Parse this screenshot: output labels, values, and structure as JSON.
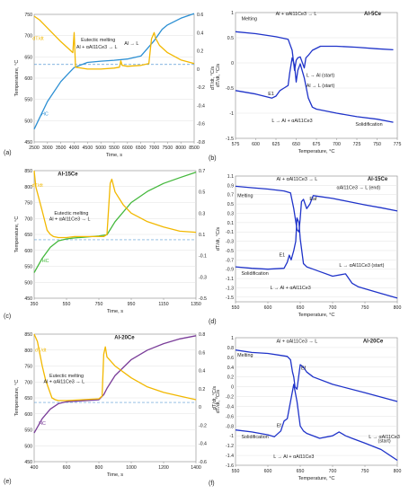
{
  "chart_data": [
    {
      "panel": "(a)",
      "type": "line",
      "tag": "Al-5Ce",
      "xlabel": "Time, s",
      "ylabel": "Temperature, °C",
      "y2label": "dT/dt, °C/s",
      "xlim": [
        2500,
        8500
      ],
      "ylim": [
        450,
        750
      ],
      "y2lim": [
        -0.8,
        0.6
      ],
      "xticks": [
        2500,
        3000,
        3500,
        4000,
        4500,
        5000,
        5500,
        6000,
        6500,
        7000,
        7500,
        8000,
        8500
      ],
      "yticks": [
        450,
        500,
        550,
        600,
        650,
        700,
        750
      ],
      "y2ticks": [
        -0.8,
        -0.6,
        -0.4,
        -0.2,
        0,
        0.2,
        0.4,
        0.6
      ],
      "series": [
        {
          "name": "HC",
          "axis": "left",
          "color": "#2b8fd3",
          "x": [
            2500,
            3000,
            3500,
            3800,
            4000,
            4500,
            5000,
            5500,
            6000,
            6500,
            7000,
            7300,
            7500,
            8000,
            8500
          ],
          "y": [
            480,
            545,
            592,
            612,
            625,
            637,
            640,
            642,
            645,
            652,
            688,
            715,
            725,
            741,
            752
          ]
        },
        {
          "name": "dT/dt",
          "axis": "right",
          "color": "#f2b800",
          "x": [
            2500,
            2700,
            3000,
            3500,
            3800,
            3950,
            4000,
            4050,
            4500,
            5000,
            5500,
            5700,
            5750,
            5800,
            6000,
            6500,
            6800,
            6900,
            7000,
            7050,
            7200,
            7500,
            8000,
            8500
          ],
          "y": [
            0.58,
            0.54,
            0.45,
            0.3,
            0.22,
            0.18,
            0.4,
            0.02,
            0.0,
            0.0,
            0.01,
            0.02,
            0.09,
            0.04,
            0.03,
            0.04,
            0.06,
            0.33,
            0.4,
            0.34,
            0.26,
            0.18,
            0.1,
            0.06
          ]
        }
      ],
      "hlines": [
        {
          "axis": "right",
          "y": 0.05,
          "color": "#5a9bd5",
          "style": "dashed"
        }
      ],
      "annotations": [
        {
          "text": "dT/dt",
          "x": 2650,
          "y": 690,
          "color": "#f2b800"
        },
        {
          "text": "HC",
          "x": 2900,
          "y": 512,
          "color": "#2b8fd3"
        },
        {
          "text": "Eutectic melting",
          "x": 4900,
          "y": 687
        },
        {
          "text": "Al + αAl11Ce3 → L",
          "x": 4850,
          "y": 670
        },
        {
          "text": "Al → L",
          "x": 6150,
          "y": 678
        }
      ]
    },
    {
      "panel": "(b)",
      "type": "line",
      "tag": "Al-5Ce",
      "xlabel": "Temperature, °C",
      "ylabel": "dT/dt, °C/s",
      "xlim": [
        575,
        775
      ],
      "ylim": [
        -1.5,
        1
      ],
      "xticks": [
        575,
        600,
        625,
        650,
        675,
        700,
        725,
        750,
        775
      ],
      "yticks": [
        -1.5,
        -1,
        -0.5,
        0,
        0.5,
        1
      ],
      "series": [
        {
          "name": "Melting",
          "color": "#1f33c9",
          "x": [
            575,
            600,
            625,
            640,
            645,
            648,
            650,
            652,
            655,
            660,
            662,
            665,
            670,
            680,
            700,
            725,
            750,
            770
          ],
          "y": [
            0.62,
            0.58,
            0.52,
            0.47,
            0.25,
            -0.15,
            0.05,
            0.1,
            0.12,
            -0.1,
            0.1,
            0.15,
            0.25,
            0.33,
            0.33,
            0.31,
            0.28,
            0.26
          ]
        },
        {
          "name": "Solidification",
          "color": "#1f33c9",
          "x": [
            575,
            600,
            615,
            620,
            625,
            630,
            635,
            640,
            642,
            645,
            648,
            650,
            652,
            655,
            660,
            665,
            670,
            675,
            700,
            725,
            750,
            770
          ],
          "y": [
            -0.55,
            -0.62,
            -0.68,
            -0.7,
            -0.66,
            -0.55,
            -0.5,
            -0.45,
            -0.2,
            0.1,
            -0.05,
            -0.38,
            -0.15,
            -0.02,
            -0.3,
            -0.7,
            -0.88,
            -0.92,
            -1.0,
            -1.07,
            -1.12,
            -1.18
          ]
        }
      ],
      "annotations": [
        {
          "text": "Melting",
          "x": 592,
          "y": 0.85
        },
        {
          "text": "Al + αAl11Ce3 → L",
          "x": 650,
          "y": 0.95
        },
        {
          "text": "Al-5Ce",
          "x": 755,
          "y": 0.95
        },
        {
          "text": "E1",
          "x": 619,
          "y": -0.64
        },
        {
          "text": "L → Al (start)",
          "x": 680,
          "y": -0.28
        },
        {
          "text": "Al → L (start)",
          "x": 680,
          "y": -0.48
        },
        {
          "text": "L → Al + αAl11Ce3",
          "x": 645,
          "y": -1.18
        },
        {
          "text": "Solidification",
          "x": 740,
          "y": -1.25
        }
      ]
    },
    {
      "panel": "(c)",
      "type": "line",
      "tag": "Al-15Ce",
      "xlabel": "Time, s",
      "ylabel": "Temperature, °C",
      "xlim": [
        350,
        1350
      ],
      "ylim": [
        450,
        850
      ],
      "y2lim": [
        -0.5,
        0.7
      ],
      "xticks": [
        350,
        550,
        750,
        950,
        1150,
        1350
      ],
      "yticks": [
        450,
        500,
        550,
        600,
        650,
        700,
        750,
        800,
        850
      ],
      "y2ticks": [
        -0.5,
        -0.3,
        -0.1,
        0.1,
        0.3,
        0.5,
        0.7
      ],
      "series": [
        {
          "name": "HC",
          "axis": "left",
          "color": "#44b83c",
          "x": [
            350,
            400,
            450,
            500,
            550,
            600,
            650,
            700,
            750,
            800,
            850,
            950,
            1050,
            1150,
            1250,
            1350
          ],
          "y": [
            530,
            575,
            610,
            630,
            636,
            639,
            641,
            643,
            645,
            649,
            690,
            750,
            785,
            810,
            828,
            845
          ]
        },
        {
          "name": "dT/dt",
          "axis": "right",
          "color": "#f2b800",
          "x": [
            350,
            360,
            400,
            430,
            450,
            470,
            500,
            550,
            600,
            700,
            780,
            800,
            820,
            830,
            850,
            900,
            950,
            1050,
            1150,
            1250,
            1350
          ],
          "y": [
            0.7,
            0.55,
            0.32,
            0.14,
            0.1,
            0.08,
            0.07,
            0.07,
            0.08,
            0.08,
            0.08,
            0.1,
            0.58,
            0.62,
            0.5,
            0.38,
            0.3,
            0.22,
            0.17,
            0.13,
            0.12
          ]
        }
      ],
      "hlines": [
        {
          "axis": "right",
          "y": 0.05,
          "color": "#5a9bd5",
          "style": "dashed"
        }
      ],
      "annotations": [
        {
          "text": "Al-15Ce",
          "x": 620,
          "y": 835
        },
        {
          "text": "dT/dt",
          "x": 370,
          "y": 800,
          "color": "#f2b800"
        },
        {
          "text": "HC",
          "x": 420,
          "y": 563,
          "color": "#44b83c"
        },
        {
          "text": "Eutectic melting",
          "x": 580,
          "y": 712
        },
        {
          "text": "Al + αAl11Ce3 → L",
          "x": 570,
          "y": 694
        }
      ]
    },
    {
      "panel": "(d)",
      "type": "line",
      "tag": "Al-15Ce",
      "xlabel": "Temperature, °C",
      "ylabel": "dT/dt, °C/s",
      "xlim": [
        550,
        800
      ],
      "ylim": [
        -1.6,
        1.1
      ],
      "xticks": [
        550,
        600,
        650,
        700,
        750,
        800
      ],
      "yticks": [
        -1.5,
        -1.3,
        -1.1,
        -0.9,
        -0.7,
        -0.5,
        -0.3,
        -0.1,
        0.1,
        0.3,
        0.5,
        0.7,
        0.9,
        1.1
      ],
      "series": [
        {
          "name": "Melting",
          "color": "#1f33c9",
          "x": [
            550,
            575,
            600,
            625,
            635,
            640,
            645,
            648,
            650,
            652,
            655,
            660,
            665,
            670,
            680,
            700,
            725,
            750,
            775,
            800
          ],
          "y": [
            0.88,
            0.85,
            0.82,
            0.78,
            0.74,
            0.4,
            -0.05,
            -0.1,
            0.2,
            0.55,
            0.6,
            0.4,
            0.5,
            0.68,
            0.66,
            0.62,
            0.55,
            0.48,
            0.42,
            0.35
          ]
        },
        {
          "name": "Solidification",
          "color": "#1f33c9",
          "x": [
            550,
            575,
            600,
            625,
            630,
            633,
            636,
            640,
            643,
            645,
            648,
            650,
            655,
            660,
            670,
            680,
            700,
            720,
            730,
            740,
            750,
            775,
            800
          ],
          "y": [
            -0.85,
            -0.88,
            -0.9,
            -0.88,
            -0.75,
            -0.6,
            -0.7,
            -0.5,
            -0.3,
            0.2,
            0.1,
            -0.25,
            -0.78,
            -0.85,
            -0.9,
            -0.95,
            -1.05,
            -1.0,
            -1.2,
            -1.28,
            -1.32,
            -1.42,
            -1.52
          ]
        }
      ],
      "annotations": [
        {
          "text": "Al-15Ce",
          "x": 785,
          "y": 1.0
        },
        {
          "text": "Melting",
          "x": 565,
          "y": 0.65
        },
        {
          "text": "Al + αAl11Ce3 → L",
          "x": 645,
          "y": 1.0
        },
        {
          "text": "αAl11Ce3 → L (end)",
          "x": 740,
          "y": 0.82
        },
        {
          "text": "Eaf",
          "x": 670,
          "y": 0.58
        },
        {
          "text": "E1",
          "x": 622,
          "y": -0.63
        },
        {
          "text": "Solidification",
          "x": 580,
          "y": -1.02
        },
        {
          "text": "L → αAl11Ce3 (start)",
          "x": 745,
          "y": -0.85
        },
        {
          "text": "L → Al + αAl11Ce3",
          "x": 635,
          "y": -1.33
        }
      ]
    },
    {
      "panel": "(e)",
      "type": "line",
      "tag": "Al-20Ce",
      "xlabel": "Time, s",
      "ylabel": "Temperature, °C",
      "y2label": "dT/dt, °C/s",
      "xlim": [
        400,
        1400
      ],
      "ylim": [
        450,
        850
      ],
      "y2lim": [
        -0.6,
        0.8
      ],
      "xticks": [
        400,
        600,
        800,
        1000,
        1200,
        1400
      ],
      "yticks": [
        450,
        500,
        550,
        600,
        650,
        700,
        750,
        800,
        850
      ],
      "y2ticks": [
        -0.6,
        -0.4,
        -0.2,
        0,
        0.2,
        0.4,
        0.6,
        0.8
      ],
      "series": [
        {
          "name": "HC",
          "axis": "left",
          "color": "#7a3d99",
          "x": [
            400,
            450,
            500,
            550,
            600,
            700,
            800,
            830,
            850,
            900,
            1000,
            1100,
            1200,
            1300,
            1400
          ],
          "y": [
            540,
            585,
            615,
            632,
            638,
            641,
            644,
            660,
            680,
            720,
            770,
            800,
            820,
            835,
            845
          ]
        },
        {
          "name": "dT/dt",
          "axis": "right",
          "color": "#f2b800",
          "x": [
            400,
            420,
            450,
            470,
            490,
            510,
            530,
            550,
            600,
            700,
            800,
            820,
            830,
            840,
            850,
            900,
            1000,
            1100,
            1200,
            1300,
            1400
          ],
          "y": [
            0.8,
            0.72,
            0.45,
            0.3,
            0.2,
            0.1,
            0.08,
            0.07,
            0.07,
            0.08,
            0.09,
            0.12,
            0.58,
            0.66,
            0.55,
            0.45,
            0.32,
            0.22,
            0.16,
            0.12,
            0.08
          ]
        }
      ],
      "hlines": [
        {
          "axis": "right",
          "y": 0.05,
          "color": "#5a9bd5",
          "style": "dashed"
        }
      ],
      "annotations": [
        {
          "text": "Al-20Ce",
          "x": 1020,
          "y": 835
        },
        {
          "text": "dT/dt",
          "x": 440,
          "y": 795,
          "color": "#f2b800"
        },
        {
          "text": "HC",
          "x": 450,
          "y": 565,
          "color": "#7a3d99"
        },
        {
          "text": "Eutectic melting",
          "x": 600,
          "y": 715
        },
        {
          "text": "Al + αAl11Ce3 → L",
          "x": 585,
          "y": 697
        }
      ]
    },
    {
      "panel": "(f)",
      "type": "line",
      "tag": "Al-20Ce",
      "xlabel": "Temperature, °C",
      "ylabel": "dT/dt, °C/s",
      "xlim": [
        550,
        800
      ],
      "ylim": [
        -1.6,
        1
      ],
      "xticks": [
        550,
        600,
        650,
        700,
        750,
        800
      ],
      "yticks": [
        -1.6,
        -1.4,
        -1.2,
        -1,
        -0.8,
        -0.6,
        -0.4,
        -0.2,
        0,
        0.2,
        0.4,
        0.6,
        0.8,
        1
      ],
      "series": [
        {
          "name": "Melting",
          "color": "#1f33c9",
          "x": [
            550,
            575,
            600,
            620,
            630,
            635,
            638,
            640,
            642,
            645,
            650,
            655,
            660,
            670,
            700,
            750,
            800
          ],
          "y": [
            0.75,
            0.7,
            0.68,
            0.64,
            0.62,
            0.55,
            0.3,
            0.2,
            0.0,
            -0.05,
            0.45,
            0.4,
            0.3,
            0.2,
            0.05,
            -0.12,
            -0.3
          ]
        },
        {
          "name": "Solidification",
          "color": "#1f33c9",
          "x": [
            550,
            575,
            600,
            610,
            620,
            625,
            630,
            635,
            640,
            645,
            650,
            655,
            660,
            680,
            700,
            710,
            720,
            730,
            750,
            775,
            800
          ],
          "y": [
            -0.88,
            -0.92,
            -0.98,
            -1.02,
            -0.9,
            -0.7,
            -0.65,
            -0.3,
            0.05,
            -0.3,
            -0.8,
            -0.9,
            -0.95,
            -1.05,
            -1.0,
            -0.92,
            -1.0,
            -1.05,
            -1.15,
            -1.28,
            -1.5
          ]
        }
      ],
      "annotations": [
        {
          "text": "Al-20Ce",
          "x": 778,
          "y": 0.9
        },
        {
          "text": "Al + αAl11Ce3 → L",
          "x": 645,
          "y": 0.9
        },
        {
          "text": "Melting",
          "x": 565,
          "y": 0.62
        },
        {
          "text": "Ef",
          "x": 655,
          "y": 0.35
        },
        {
          "text": "Ef",
          "x": 617,
          "y": -0.82
        },
        {
          "text": "Solidification",
          "x": 580,
          "y": -1.05
        },
        {
          "text": "L → αAl11Ce3",
          "x": 780,
          "y": -1.05
        },
        {
          "text": "(start)",
          "x": 780,
          "y": -1.13
        },
        {
          "text": "L → Al + αAl11Ce3",
          "x": 640,
          "y": -1.45
        }
      ]
    }
  ],
  "labels": {
    "a": "(a)",
    "b": "(b)",
    "c": "(c)",
    "d": "(d)",
    "e": "(e)",
    "f": "(f)"
  }
}
